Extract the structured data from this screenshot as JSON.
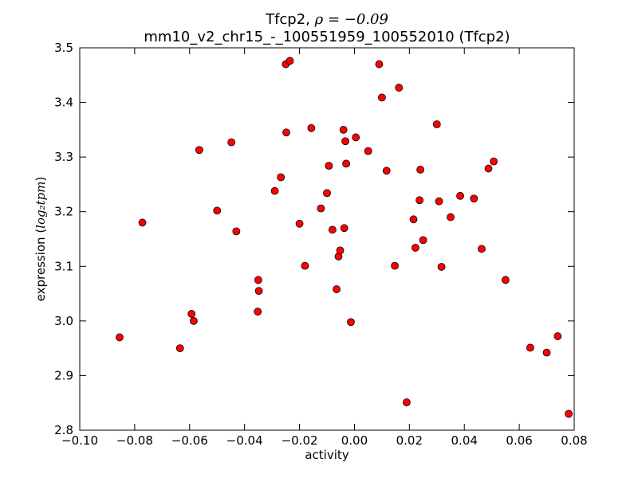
{
  "chart_data": {
    "type": "scatter",
    "title_line1_text": "Tfcp2, ",
    "title_line1_math": "ρ = −0.09",
    "title_line2": "mm10_v2_chr15_-_100551959_100552010 (Tfcp2)",
    "xlabel": "activity",
    "ylabel_text": "expression (",
    "ylabel_math": "log₂tpm",
    "ylabel_close": ")",
    "xlim": [
      -0.1,
      0.08
    ],
    "ylim": [
      2.8,
      3.5
    ],
    "xticks": [
      -0.1,
      -0.08,
      -0.06,
      -0.04,
      -0.02,
      0.0,
      0.02,
      0.04,
      0.06,
      0.08
    ],
    "xtick_labels": [
      "−0.10",
      "−0.08",
      "−0.06",
      "−0.04",
      "−0.02",
      "0.00",
      "0.02",
      "0.04",
      "0.06",
      "0.08"
    ],
    "yticks": [
      2.8,
      2.9,
      3.0,
      3.1,
      3.2,
      3.3,
      3.4,
      3.5
    ],
    "ytick_labels": [
      "2.8",
      "2.9",
      "3.0",
      "3.1",
      "3.2",
      "3.3",
      "3.4",
      "3.5"
    ],
    "grid": false,
    "marker_color": "#ff0000",
    "marker_edge": "#000000",
    "points": [
      {
        "x": -0.0855,
        "y": 2.97
      },
      {
        "x": -0.0772,
        "y": 3.18
      },
      {
        "x": -0.0635,
        "y": 2.95
      },
      {
        "x": -0.0593,
        "y": 3.013
      },
      {
        "x": -0.0585,
        "y": 3.0
      },
      {
        "x": -0.0565,
        "y": 3.313
      },
      {
        "x": -0.05,
        "y": 3.202
      },
      {
        "x": -0.0448,
        "y": 3.327
      },
      {
        "x": -0.043,
        "y": 3.164
      },
      {
        "x": -0.0352,
        "y": 3.017
      },
      {
        "x": -0.035,
        "y": 3.075
      },
      {
        "x": -0.0348,
        "y": 3.055
      },
      {
        "x": -0.029,
        "y": 3.238
      },
      {
        "x": -0.0268,
        "y": 3.263
      },
      {
        "x": -0.025,
        "y": 3.47
      },
      {
        "x": -0.0248,
        "y": 3.345
      },
      {
        "x": -0.0235,
        "y": 3.476
      },
      {
        "x": -0.02,
        "y": 3.178
      },
      {
        "x": -0.018,
        "y": 3.101
      },
      {
        "x": -0.0157,
        "y": 3.353
      },
      {
        "x": -0.0122,
        "y": 3.206
      },
      {
        "x": -0.01,
        "y": 3.234
      },
      {
        "x": -0.0093,
        "y": 3.284
      },
      {
        "x": -0.008,
        "y": 3.167
      },
      {
        "x": -0.0065,
        "y": 3.058
      },
      {
        "x": -0.0058,
        "y": 3.118
      },
      {
        "x": -0.0052,
        "y": 3.129
      },
      {
        "x": -0.004,
        "y": 3.35
      },
      {
        "x": -0.0037,
        "y": 3.17
      },
      {
        "x": -0.0033,
        "y": 3.329
      },
      {
        "x": -0.003,
        "y": 3.288
      },
      {
        "x": -0.0013,
        "y": 2.998
      },
      {
        "x": 0.0005,
        "y": 3.336
      },
      {
        "x": 0.005,
        "y": 3.311
      },
      {
        "x": 0.009,
        "y": 3.47
      },
      {
        "x": 0.01,
        "y": 3.409
      },
      {
        "x": 0.0117,
        "y": 3.275
      },
      {
        "x": 0.0147,
        "y": 3.101
      },
      {
        "x": 0.0162,
        "y": 3.427
      },
      {
        "x": 0.019,
        "y": 2.851
      },
      {
        "x": 0.0215,
        "y": 3.186
      },
      {
        "x": 0.0222,
        "y": 3.134
      },
      {
        "x": 0.0237,
        "y": 3.221
      },
      {
        "x": 0.024,
        "y": 3.277
      },
      {
        "x": 0.025,
        "y": 3.148
      },
      {
        "x": 0.03,
        "y": 3.36
      },
      {
        "x": 0.0308,
        "y": 3.219
      },
      {
        "x": 0.0317,
        "y": 3.099
      },
      {
        "x": 0.035,
        "y": 3.19
      },
      {
        "x": 0.0385,
        "y": 3.229
      },
      {
        "x": 0.0435,
        "y": 3.224
      },
      {
        "x": 0.0463,
        "y": 3.132
      },
      {
        "x": 0.0488,
        "y": 3.279
      },
      {
        "x": 0.0507,
        "y": 3.292
      },
      {
        "x": 0.055,
        "y": 3.075
      },
      {
        "x": 0.064,
        "y": 2.951
      },
      {
        "x": 0.07,
        "y": 2.942
      },
      {
        "x": 0.074,
        "y": 2.972
      },
      {
        "x": 0.078,
        "y": 2.83
      }
    ]
  }
}
